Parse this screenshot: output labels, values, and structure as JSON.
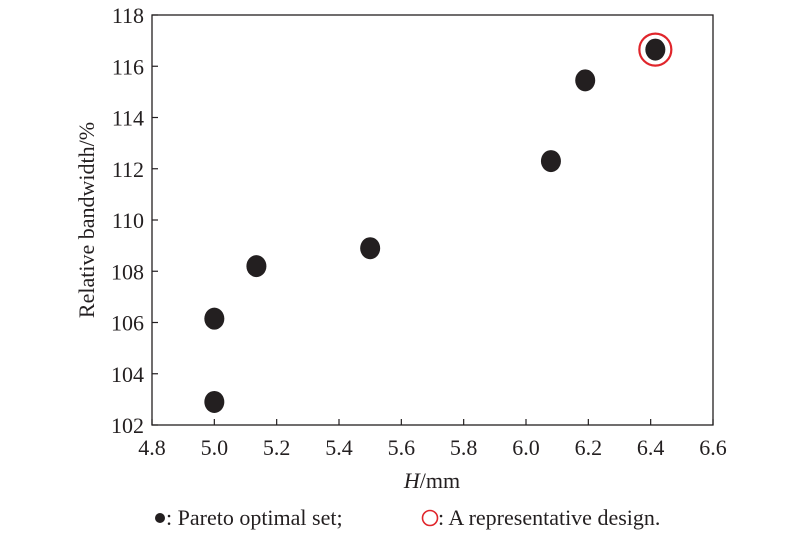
{
  "chart_data": {
    "type": "scatter",
    "title": "",
    "xlabel_italic": "H",
    "xlabel_rest": "/mm",
    "ylabel": "Relative bandwidth/%",
    "xlim": [
      4.8,
      6.6
    ],
    "ylim": [
      102,
      118
    ],
    "xticks": [
      "4.8",
      "5.0",
      "5.2",
      "5.4",
      "5.6",
      "5.8",
      "6.0",
      "6.2",
      "6.4",
      "6.6"
    ],
    "yticks": [
      "102",
      "104",
      "106",
      "108",
      "110",
      "112",
      "114",
      "116",
      "118"
    ],
    "grid": false,
    "series": [
      {
        "name": "Pareto optimal set",
        "color": "#231f20",
        "points": [
          {
            "x": 5.0,
            "y": 102.9
          },
          {
            "x": 5.0,
            "y": 106.15
          },
          {
            "x": 5.135,
            "y": 108.2
          },
          {
            "x": 5.5,
            "y": 108.9
          },
          {
            "x": 6.08,
            "y": 112.3
          },
          {
            "x": 6.19,
            "y": 115.45
          },
          {
            "x": 6.415,
            "y": 116.65
          }
        ]
      }
    ],
    "highlight": {
      "name": "A representative design",
      "x": 6.415,
      "y": 116.65,
      "color": "#e0252b"
    },
    "legend": {
      "placement": "bottom",
      "pareto_label": ": Pareto optimal set;",
      "representative_label": ": A representative design."
    }
  }
}
